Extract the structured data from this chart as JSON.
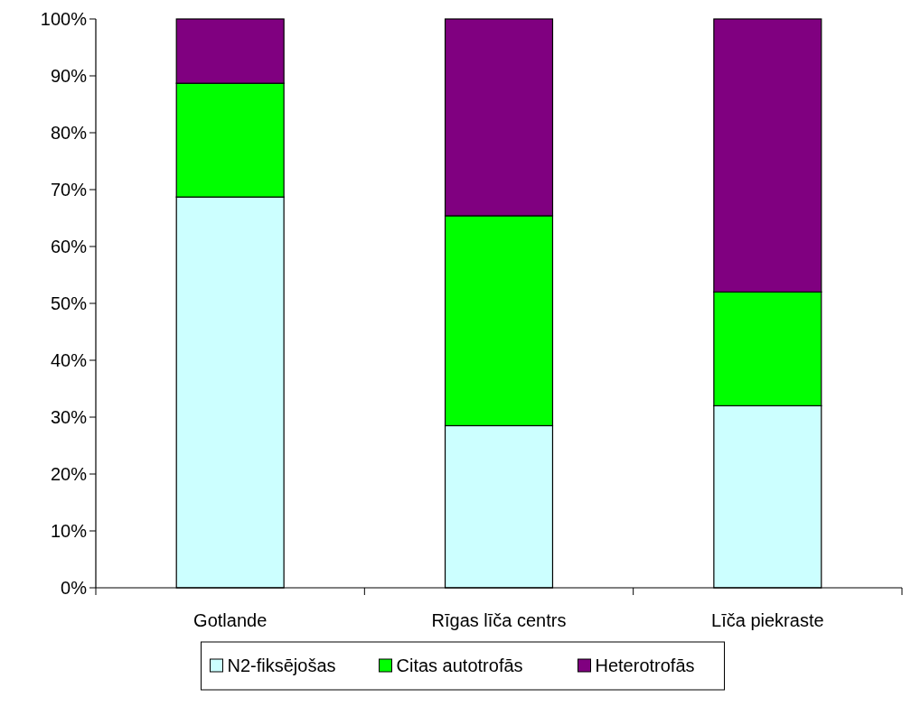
{
  "chart_data": {
    "type": "bar",
    "stacked": true,
    "categories": [
      "Gotlande",
      "Rīgas līča centrs",
      "Līča piekraste"
    ],
    "series": [
      {
        "name": "N2-fiksējošas",
        "color": "#ccffff",
        "values": [
          68.7,
          28.5,
          32
        ]
      },
      {
        "name": "Citas autotrofās",
        "color": "#00ff00",
        "values": [
          20,
          36.9,
          20
        ]
      },
      {
        "name": "Heterotrofās",
        "color": "#800080",
        "values": [
          11.3,
          34.6,
          48
        ]
      }
    ],
    "ylim": [
      0,
      100
    ],
    "yticks": [
      {
        "value": 0,
        "label": "0%"
      },
      {
        "value": 10,
        "label": "10%"
      },
      {
        "value": 20,
        "label": "20%"
      },
      {
        "value": 30,
        "label": "30%"
      },
      {
        "value": 40,
        "label": "40%"
      },
      {
        "value": 50,
        "label": "50%"
      },
      {
        "value": 60,
        "label": "60%"
      },
      {
        "value": 70,
        "label": "70%"
      },
      {
        "value": 80,
        "label": "80%"
      },
      {
        "value": 90,
        "label": "90%"
      },
      {
        "value": 100,
        "label": "100%"
      }
    ],
    "grid": false,
    "legend": "bottom"
  }
}
